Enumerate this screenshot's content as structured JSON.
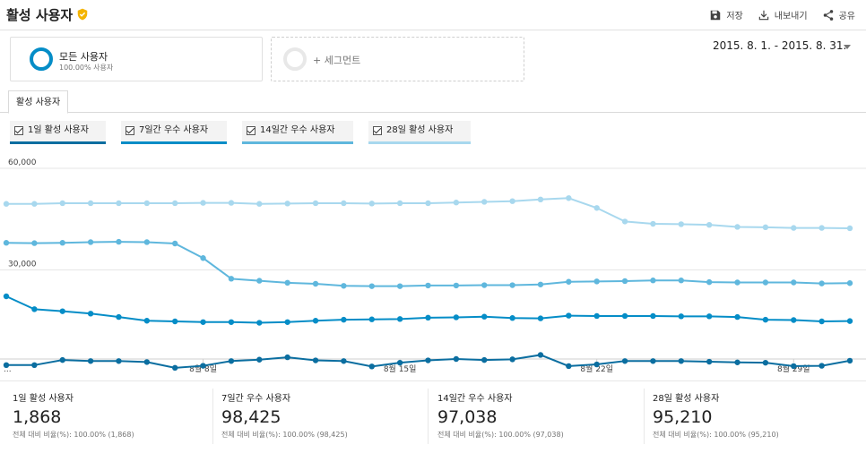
{
  "header": {
    "title": "활성 사용자",
    "save_label": "저장",
    "export_label": "내보내기",
    "share_label": "공유"
  },
  "segments": {
    "all_users": {
      "name": "모든 사용자",
      "sub": "100.00% 사용자"
    },
    "add_label": "+ 세그먼트"
  },
  "date_range": "2015. 8. 1. - 2015. 8. 31.",
  "tab": "활성 사용자",
  "legend": [
    {
      "label": "1일 활성 사용자",
      "color": "#0b6ea0"
    },
    {
      "label": "7일간 우수 사용자",
      "color": "#058dc7"
    },
    {
      "label": "14일간 우수 사용자",
      "color": "#5fb7dd"
    },
    {
      "label": "28일 활성 사용자",
      "color": "#a8d8ee"
    }
  ],
  "chart_data": {
    "type": "line",
    "x": [
      "8월 1일",
      "8월 2일",
      "8월 3일",
      "8월 4일",
      "8월 5일",
      "8월 6일",
      "8월 7일",
      "8월 8일",
      "8월 9일",
      "8월 10일",
      "8월 11일",
      "8월 12일",
      "8월 13일",
      "8월 14일",
      "8월 15일",
      "8월 16일",
      "8월 17일",
      "8월 18일",
      "8월 19일",
      "8월 20일",
      "8월 21일",
      "8월 22일",
      "8월 23일",
      "8월 24일",
      "8월 25일",
      "8월 26일",
      "8월 27일",
      "8월 28일",
      "8월 29일",
      "8월 30일",
      "8월 31일"
    ],
    "x_tick_labels": [
      "...",
      "8월 8일",
      "8월 15일",
      "8월 22일",
      "8월 29일"
    ],
    "y_tick_labels": [
      "60,000",
      "30,000"
    ],
    "ylim": [
      0,
      60000
    ],
    "grid": true,
    "series": [
      {
        "name": "28일 활성 사용자",
        "color": "#a8d8ee",
        "values": [
          49500,
          49500,
          49700,
          49700,
          49700,
          49700,
          49700,
          49800,
          49800,
          49500,
          49600,
          49700,
          49700,
          49600,
          49700,
          49700,
          49900,
          50100,
          50300,
          50800,
          51200,
          48300,
          44300,
          43600,
          43500,
          43300,
          42700,
          42600,
          42400,
          42400,
          42300
        ]
      },
      {
        "name": "14일간 우수 사용자",
        "color": "#5fb7dd",
        "values": [
          38000,
          37900,
          38000,
          38200,
          38300,
          38200,
          37800,
          33500,
          27400,
          26800,
          26200,
          25900,
          25300,
          25200,
          25200,
          25400,
          25400,
          25500,
          25500,
          25700,
          26500,
          26600,
          26700,
          26900,
          26900,
          26400,
          26300,
          26300,
          26300,
          26000,
          26100
        ]
      },
      {
        "name": "7일간 우수 사용자",
        "color": "#058dc7",
        "values": [
          22200,
          18400,
          17800,
          17100,
          16100,
          15000,
          14800,
          14600,
          14600,
          14400,
          14600,
          15000,
          15300,
          15400,
          15500,
          15900,
          16000,
          16200,
          15800,
          15700,
          16500,
          16400,
          16400,
          16400,
          16300,
          16300,
          16100,
          15300,
          15200,
          14800,
          14900
        ]
      },
      {
        "name": "1일 활성 사용자",
        "color": "#0b6ea0",
        "values": [
          1900,
          1900,
          3400,
          3100,
          3100,
          2800,
          1100,
          1700,
          3100,
          3500,
          4200,
          3300,
          3100,
          1500,
          2600,
          3300,
          3700,
          3400,
          3600,
          4900,
          1600,
          2100,
          3100,
          3100,
          3100,
          2900,
          2700,
          2600,
          1600,
          1700,
          3200
        ]
      }
    ]
  },
  "stats": [
    {
      "label": "1일 활성 사용자",
      "value": "1,868",
      "sub": "전체 대비 비율(%): 100.00% (1,868)"
    },
    {
      "label": "7일간 우수 사용자",
      "value": "98,425",
      "sub": "전체 대비 비율(%): 100.00% (98,425)"
    },
    {
      "label": "14일간 우수 사용자",
      "value": "97,038",
      "sub": "전체 대비 비율(%): 100.00% (97,038)"
    },
    {
      "label": "28일 활성 사용자",
      "value": "95,210",
      "sub": "전체 대비 비율(%): 100.00% (95,210)"
    }
  ],
  "icons": {
    "verified": "verified-shield-icon",
    "save": "floppy-disk-icon",
    "export": "download-icon",
    "share": "share-icon"
  }
}
